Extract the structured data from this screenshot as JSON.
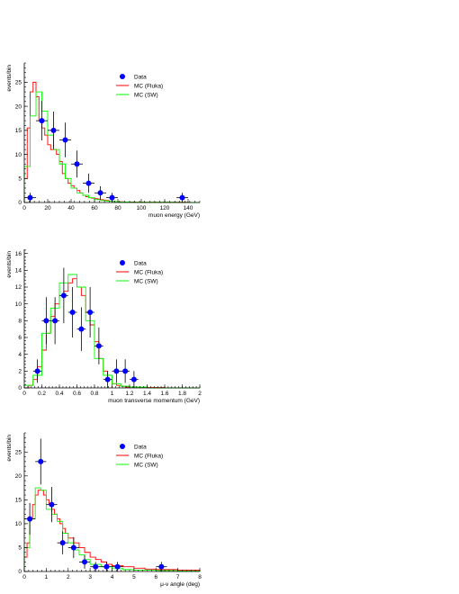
{
  "colors": {
    "data": "#0000ff",
    "mc_fluka": "#ff0000",
    "mc_sw": "#00ff00",
    "axis": "#000000"
  },
  "legend": {
    "data": "Data",
    "mc_fluka": "MC (Fluka)",
    "mc_sw": "MC (SW)"
  },
  "chart_data": [
    {
      "type": "histogram",
      "xlabel": "muon energy (GeV)",
      "ylabel": "events/bin",
      "xlim": [
        0,
        150
      ],
      "ylim": [
        0,
        29
      ],
      "xticks": [
        "0",
        "20",
        "40",
        "60",
        "80",
        "100",
        "120",
        "140"
      ],
      "yticks": [
        "0",
        "5",
        "10",
        "15",
        "20",
        "25"
      ],
      "legend_position": "top-right",
      "data_points": {
        "x": [
          5,
          15,
          25,
          35,
          45,
          55,
          65,
          75,
          135
        ],
        "y": [
          1,
          17,
          15,
          13,
          8,
          4,
          2,
          1,
          1
        ],
        "xerr": [
          5,
          5,
          5,
          5,
          5,
          5,
          5,
          5,
          5
        ],
        "yerr": [
          1,
          4.1,
          3.9,
          3.6,
          2.8,
          2,
          1.4,
          1,
          1
        ]
      },
      "series": [
        {
          "name": "MC (Fluka)",
          "edges": [
            0,
            2.5,
            5,
            7.5,
            10,
            12.5,
            15,
            17.5,
            20,
            22.5,
            25,
            27.5,
            30,
            32.5,
            35,
            37.5,
            40,
            42.5,
            45,
            47.5,
            50,
            52.5,
            55,
            57.5,
            60,
            62.5,
            65,
            67.5,
            70,
            72.5,
            75,
            77.5,
            80,
            85,
            90,
            95,
            100,
            110,
            120,
            130,
            140,
            150
          ],
          "values": [
            5,
            15.5,
            23,
            25,
            22,
            17,
            15.5,
            14,
            12,
            11,
            11,
            10,
            8.5,
            6,
            5,
            4,
            3.5,
            3,
            2.5,
            2,
            1.5,
            1.2,
            1,
            0.9,
            0.8,
            0.7,
            0.6,
            0.5,
            0.4,
            0.3,
            0.25,
            0.2,
            0.15,
            0.1,
            0.1,
            0.05,
            0.05,
            0.05,
            0.05,
            0.05,
            0
          ]
        },
        {
          "name": "MC (SW)",
          "edges": [
            0,
            5,
            10,
            15,
            20,
            25,
            30,
            35,
            40,
            45,
            50,
            55,
            60,
            65,
            70,
            75,
            80,
            90,
            100,
            110,
            120,
            130,
            140,
            150
          ],
          "values": [
            7.5,
            18,
            23,
            19,
            14,
            11,
            8,
            5,
            3,
            2,
            1.5,
            1,
            0.6,
            0.4,
            0.3,
            0.2,
            0.1,
            0.05,
            0.05,
            0.05,
            0.05,
            0,
            0
          ]
        }
      ]
    },
    {
      "type": "histogram",
      "xlabel": "muon transverse momentum (GeV)",
      "ylabel": "events/bin",
      "xlim": [
        0,
        2
      ],
      "ylim": [
        0,
        16.5
      ],
      "xticks": [
        "0",
        "0.2",
        "0.4",
        "0.6",
        "0.8",
        "1",
        "1.2",
        "1.4",
        "1.6",
        "1.8",
        "2"
      ],
      "yticks": [
        "0",
        "2",
        "4",
        "6",
        "8",
        "10",
        "12",
        "14",
        "16"
      ],
      "legend_position": "top-right",
      "data_points": {
        "x": [
          0.15,
          0.25,
          0.35,
          0.45,
          0.55,
          0.65,
          0.75,
          0.85,
          0.95,
          1.05,
          1.15,
          1.25
        ],
        "y": [
          2,
          8,
          8,
          11,
          9,
          7,
          9,
          5,
          1,
          2,
          2,
          1
        ],
        "xerr": [
          0.05,
          0.05,
          0.05,
          0.05,
          0.05,
          0.05,
          0.05,
          0.05,
          0.05,
          0.05,
          0.05,
          0.05
        ],
        "yerr": [
          1.4,
          2.8,
          2.8,
          3.3,
          3,
          2.6,
          3,
          2.2,
          1,
          1.4,
          1.4,
          1
        ]
      },
      "series": [
        {
          "name": "MC (Fluka)",
          "edges": [
            0,
            0.05,
            0.1,
            0.15,
            0.2,
            0.25,
            0.3,
            0.35,
            0.4,
            0.45,
            0.5,
            0.55,
            0.6,
            0.65,
            0.7,
            0.75,
            0.8,
            0.85,
            0.9,
            0.95,
            1,
            1.05,
            1.1,
            1.15,
            1.2,
            1.3,
            1.4,
            1.6,
            2
          ],
          "values": [
            0,
            0.3,
            1,
            2.5,
            4.5,
            6.5,
            8.5,
            10,
            11,
            11.5,
            12.5,
            13,
            12,
            11,
            9,
            7.5,
            5.5,
            3.5,
            2,
            1,
            0.5,
            0.3,
            0.2,
            0.1,
            0.1,
            0.05,
            0.05,
            0
          ]
        },
        {
          "name": "MC (SW)",
          "edges": [
            0,
            0.1,
            0.2,
            0.3,
            0.4,
            0.5,
            0.6,
            0.7,
            0.8,
            0.9,
            1,
            1.1,
            1.2,
            1.4,
            2
          ],
          "values": [
            0.3,
            1.5,
            6.5,
            9.5,
            12.5,
            13.5,
            12,
            8,
            3.5,
            1.5,
            0.5,
            0.2,
            0.1,
            0
          ]
        }
      ]
    },
    {
      "type": "histogram",
      "xlabel": "μ-ν angle (deg)",
      "ylabel": "events/bin",
      "xlim": [
        0,
        8
      ],
      "ylim": [
        0,
        29
      ],
      "xticks": [
        "0",
        "1",
        "2",
        "3",
        "4",
        "5",
        "6",
        "7",
        "8"
      ],
      "yticks": [
        "0",
        "5",
        "10",
        "15",
        "20",
        "25"
      ],
      "legend_position": "top-right",
      "data_points": {
        "x": [
          0.25,
          0.75,
          1.25,
          1.75,
          2.25,
          2.75,
          3.25,
          3.75,
          4.25,
          6.25
        ],
        "y": [
          11,
          23,
          14,
          6,
          5,
          2,
          1,
          1,
          1,
          1
        ],
        "xerr": [
          0.25,
          0.25,
          0.25,
          0.25,
          0.25,
          0.25,
          0.25,
          0.25,
          0.25,
          0.25
        ],
        "yerr": [
          3.3,
          4.8,
          3.7,
          2.4,
          2.2,
          1.4,
          1,
          1,
          1,
          1
        ]
      },
      "series": [
        {
          "name": "MC (Fluka)",
          "edges": [
            0,
            0.125,
            0.25,
            0.375,
            0.5,
            0.625,
            0.75,
            0.875,
            1,
            1.125,
            1.25,
            1.375,
            1.5,
            1.625,
            1.75,
            1.875,
            2,
            2.25,
            2.5,
            2.75,
            3,
            3.25,
            3.5,
            3.75,
            4,
            4.5,
            5,
            5.5,
            6,
            7,
            8
          ],
          "values": [
            3,
            6,
            11,
            14,
            16,
            17,
            17,
            16,
            15,
            14,
            13,
            12,
            11,
            10,
            9,
            8,
            7,
            6,
            5,
            4,
            3,
            2.5,
            2,
            1.5,
            1.2,
            1,
            0.7,
            0.5,
            0.4,
            0.3
          ]
        },
        {
          "name": "MC (SW)",
          "edges": [
            0,
            0.25,
            0.5,
            0.75,
            1,
            1.25,
            1.5,
            1.75,
            2,
            2.25,
            2.5,
            2.75,
            3,
            3.5,
            4,
            4.5,
            5,
            6,
            7,
            8
          ],
          "values": [
            5,
            11,
            17.5,
            17,
            13,
            12,
            10.5,
            8,
            6,
            4.5,
            3.5,
            2.5,
            1.5,
            1,
            0.6,
            0.4,
            0.3,
            0.2,
            0.1
          ]
        }
      ]
    }
  ]
}
